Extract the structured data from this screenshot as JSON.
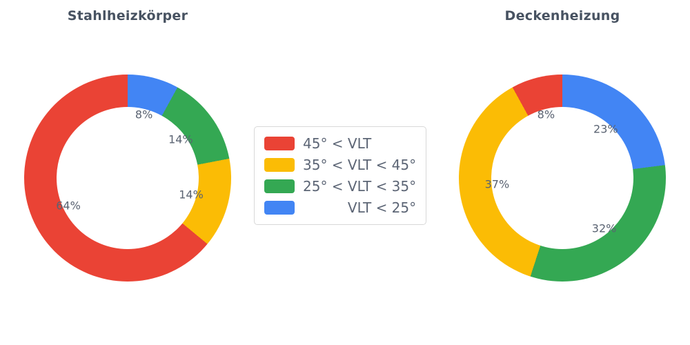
{
  "figure": {
    "background": "#ffffff"
  },
  "chart_data": [
    {
      "type": "pie",
      "subtype": "donut",
      "title": "Stahlheizkörper",
      "categories": [
        "45° < VLT",
        "35° < VLT < 45°",
        "25° < VLT < 35°",
        "VLT < 25°"
      ],
      "values": [
        64,
        14,
        14,
        8
      ],
      "unit": "%",
      "data_labels": [
        "64%",
        "14%",
        "14%",
        "8%"
      ],
      "colors": [
        "#EA4335",
        "#FBBC05",
        "#34A853",
        "#4285F4"
      ],
      "start_angle_deg": 90,
      "direction": "counterclockwise",
      "hole_ratio": 0.69
    },
    {
      "type": "pie",
      "subtype": "donut",
      "title": "Deckenheizung",
      "categories": [
        "45° < VLT",
        "35° < VLT < 45°",
        "25° < VLT < 35°",
        "VLT < 25°"
      ],
      "values": [
        8,
        37,
        32,
        23
      ],
      "unit": "%",
      "data_labels": [
        "8%",
        "37%",
        "32%",
        "23%"
      ],
      "colors": [
        "#EA4335",
        "#FBBC05",
        "#34A853",
        "#4285F4"
      ],
      "start_angle_deg": 90,
      "direction": "counterclockwise",
      "hole_ratio": 0.69
    }
  ],
  "legend": {
    "position": "center",
    "items": [
      {
        "label": "45° < VLT",
        "color": "#EA4335"
      },
      {
        "label": "35° < VLT < 45°",
        "color": "#FBBC05"
      },
      {
        "label": "25° < VLT < 35°",
        "color": "#34A853"
      },
      {
        "label": "VLT < 25°",
        "color": "#4285F4"
      }
    ]
  }
}
